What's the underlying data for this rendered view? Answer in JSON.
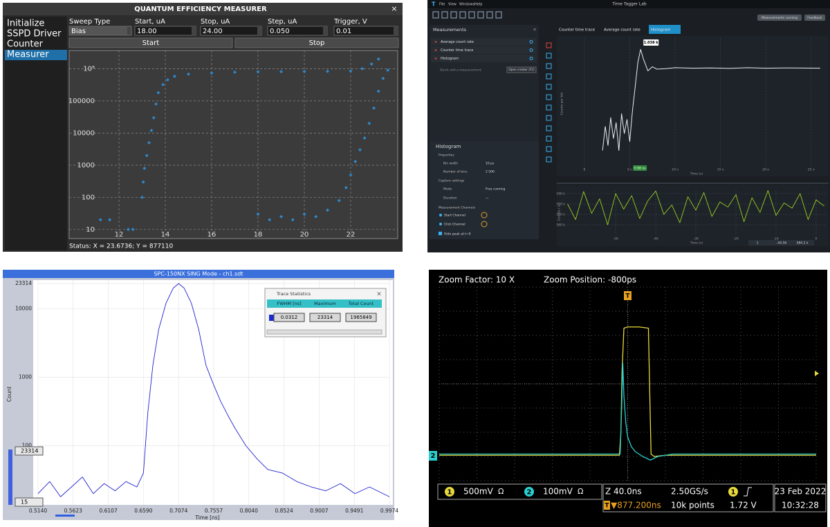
{
  "p1": {
    "title": "QUANTUM EFFICIENCY MEASURER",
    "close": "×",
    "menu": [
      "Initialize",
      "SSPD Driver",
      "Counter",
      "Measurer"
    ],
    "fields": [
      {
        "label": "Sweep Type",
        "value": "Bias"
      },
      {
        "label": "Start, uA",
        "value": "18.00"
      },
      {
        "label": "Stop, uA",
        "value": "24.00"
      },
      {
        "label": "Step, uA",
        "value": "0.050"
      },
      {
        "label": "Trigger, V",
        "value": "0.01"
      }
    ],
    "buttons": [
      "Start",
      "Stop"
    ],
    "status": "Status: X = 23.6736; Y = 877110"
  },
  "p2": {
    "logo": "T",
    "menu": [
      "File",
      "View",
      "Windows",
      "Help"
    ],
    "app_title": "Time Tagger Lab",
    "status_button": "Measurements running",
    "feedback": "Feedback",
    "sidebar_title": "Measurements",
    "sidebar_close": "×",
    "measurements": [
      "Average count rate",
      "Counter time trace",
      "Histogram"
    ],
    "quick_add": "Quick add a measurement",
    "open_creator": "Open creator (F2)",
    "tabs": [
      "Counter time trace",
      "Average count rate",
      "Histogram"
    ],
    "section": "Histogram",
    "properties": "Properties",
    "props": [
      {
        "label": "Bin width",
        "value": "10 ps"
      },
      {
        "label": "Number of bins",
        "value": "2 500"
      }
    ],
    "capture": "Capture settings",
    "capture_props": [
      {
        "label": "Mode",
        "value": "Free running"
      },
      {
        "label": "Duration",
        "value": "—"
      }
    ],
    "channels_title": "Measurement Channels",
    "channels": [
      "Start Channel",
      "Click Channel"
    ],
    "hide_peak": "Hide peak at t=0",
    "legend": [
      "1",
      "-44.56",
      "584.2 k"
    ]
  },
  "p3": {
    "cursor_labels": [
      "23314",
      "15"
    ],
    "stats": {
      "title": "Trace Statistics",
      "close": "×",
      "headers": [
        "FWHM [ns]",
        "Maximum",
        "Total Count"
      ],
      "values": [
        "0.0312",
        "23314",
        "1965849"
      ]
    }
  },
  "p4": {
    "zoom_factor": "Zoom Factor: 10 X",
    "zoom_position": "Zoom Position: -800ps",
    "trigger": "T",
    "ch2_marker": "2",
    "ch1": {
      "num": "1",
      "scale": "500mV",
      "coupling": "Ω"
    },
    "ch2": {
      "num": "2",
      "scale": "100mV",
      "coupling": "Ω"
    },
    "timebase": "Z 40.0ns",
    "rate": "2.50GS/s",
    "trig_icon": "T",
    "trig_pos": "▼877.200ns",
    "points": "10k points",
    "trig_ch": "1",
    "trig_level": "1.72 V",
    "date": "23 Feb 2022",
    "time": "10:32:28"
  },
  "chart_data": [
    {
      "type": "scatter",
      "log_y": true,
      "grid": true,
      "xlim": [
        9.85,
        24.03
      ],
      "ylim": [
        5.2,
        3700000
      ],
      "xticks": [
        12,
        14,
        16,
        18,
        20,
        22
      ],
      "yticks": [
        10,
        100,
        1000,
        10000,
        100000,
        {
          "value": 1000000,
          "label": "10⁶"
        }
      ],
      "series": [
        {
          "color": "#2f86c8",
          "x": [
            11.2,
            11.6,
            12.4,
            12.6,
            13.0,
            13.05,
            13.1,
            13.2,
            13.3,
            13.4,
            13.5,
            13.6,
            13.7,
            13.9,
            14.1,
            14.4,
            15,
            16,
            17,
            18,
            19,
            20,
            21,
            22,
            22.5,
            22.9,
            23.2
          ],
          "values": [
            20,
            20,
            10,
            10,
            100,
            300,
            800,
            2000,
            5000,
            12000,
            30000,
            80000,
            180000,
            320000,
            450000,
            580000,
            680000,
            740000,
            780000,
            800000,
            810000,
            820000,
            830000,
            850000,
            1000000,
            1400000,
            2000000
          ]
        },
        {
          "color": "#2f86c8",
          "x": [
            18,
            18.5,
            19,
            19.5,
            20,
            20.5,
            21,
            21.5,
            21.8,
            22.0,
            22.2,
            22.4,
            22.6,
            22.8,
            23.0,
            23.2,
            23.4,
            23.6
          ],
          "values": [
            30,
            20,
            25,
            20,
            30,
            25,
            40,
            80,
            200,
            500,
            1300,
            3000,
            7000,
            20000,
            60000,
            200000,
            500000,
            900000
          ]
        }
      ]
    },
    {
      "type": "line",
      "log_y": true,
      "grid": true,
      "xlim": [
        -1.9,
        26.7
      ],
      "ylim": [
        1,
        2000
      ],
      "xticks": [
        0,
        {
          "value": 5,
          "label": "5 n"
        },
        {
          "value": 10,
          "label": "10 n"
        },
        {
          "value": 15,
          "label": "15 n"
        },
        {
          "value": 20,
          "label": "20 n"
        },
        {
          "value": 25,
          "label": "25 n"
        }
      ],
      "x_label": "Time (s)",
      "y_label": "Counts per bin",
      "peak_label": "1.038 k",
      "marker_label": "0.98 ns",
      "series": [
        {
          "color": "#e8eef5",
          "x": [
            2.0,
            2.3,
            2.6,
            2.9,
            3.2,
            3.5,
            3.8,
            4.1,
            4.4,
            4.7,
            5.0,
            5.3,
            5.6,
            5.9,
            6.2,
            6.5,
            7,
            7.5,
            8,
            9,
            10,
            12,
            14,
            16,
            18,
            20,
            22,
            24,
            26
          ],
          "values": [
            3,
            12,
            4,
            20,
            6,
            15,
            3,
            25,
            8,
            18,
            5,
            30,
            120,
            500,
            1038,
            600,
            300,
            380,
            330,
            340,
            360,
            350,
            355,
            345,
            360,
            350,
            355,
            352,
            350
          ]
        }
      ]
    },
    {
      "type": "line",
      "grid": true,
      "xlim": [
        -62.1,
        2.6
      ],
      "ylim": [
        550000,
        593300
      ],
      "xticks": [
        -50,
        -40,
        -30,
        -20,
        -10,
        0
      ],
      "yticks": [
        {
          "value": 590000,
          "label": "590 k"
        },
        {
          "value": 580000,
          "label": "580 k"
        },
        {
          "value": 570000,
          "label": "570 k"
        },
        {
          "value": 560000,
          "label": "560 k"
        }
      ],
      "x_label": "Time (s)",
      "y_label": "Counts / s",
      "series": [
        {
          "color": "#a8e020",
          "x": [
            -62,
            -60,
            -58,
            -56,
            -54,
            -52,
            -50,
            -48,
            -46,
            -44,
            -42,
            -40,
            -38,
            -36,
            -34,
            -32,
            -30,
            -28,
            -26,
            -24,
            -22,
            -20,
            -18,
            -16,
            -14,
            -12,
            -10,
            -8,
            -6,
            -4,
            -2,
            0,
            2
          ],
          "values": [
            580000,
            565000,
            592000,
            571000,
            585000,
            560000,
            590000,
            575000,
            588000,
            566000,
            583000,
            592500,
            570000,
            579000,
            562000,
            587000,
            574000,
            591000,
            568000,
            582000,
            577000,
            589000,
            563000,
            586000,
            572000,
            593000,
            569000,
            581000,
            576000,
            590000,
            565000,
            584000,
            578000
          ]
        }
      ]
    },
    {
      "type": "line",
      "log_y": true,
      "grid": true,
      "title": "SPC-150NX  SING Mode - ch1.sdt",
      "xlim": [
        0.514,
        0.9974
      ],
      "ylim": [
        13.7,
        26200
      ],
      "xticks": [
        {
          "value": 0.514,
          "label": "0.5140"
        },
        0.5623,
        0.6107,
        {
          "value": 0.659,
          "label": "0.6590"
        },
        0.7074,
        0.7557,
        {
          "value": 0.804,
          "label": "0.8040"
        },
        0.8524,
        0.9007,
        0.9491,
        0.9974
      ],
      "yticks": [
        23314,
        10000,
        1000,
        100
      ],
      "x_label": "Time [ns]",
      "y_label": "Count",
      "series": [
        {
          "color": "#2020d0",
          "x": [
            0.514,
            0.53,
            0.545,
            0.56,
            0.575,
            0.59,
            0.605,
            0.62,
            0.635,
            0.65,
            0.659,
            0.665,
            0.672,
            0.68,
            0.69,
            0.7,
            0.7074,
            0.715,
            0.725,
            0.735,
            0.745,
            0.755,
            0.765,
            0.775,
            0.785,
            0.8,
            0.815,
            0.83,
            0.85,
            0.87,
            0.89,
            0.91,
            0.93,
            0.95,
            0.97,
            0.9974
          ],
          "values": [
            20,
            30,
            18,
            25,
            35,
            20,
            28,
            22,
            30,
            25,
            40,
            300,
            1500,
            5000,
            12000,
            20000,
            23314,
            20000,
            12000,
            5000,
            1500,
            800,
            450,
            280,
            180,
            100,
            65,
            45,
            40,
            30,
            25,
            22,
            28,
            20,
            25,
            18
          ]
        }
      ]
    },
    {
      "type": "line",
      "xlim": [
        0,
        10
      ],
      "ylim": [
        -4,
        4
      ],
      "series": [
        {
          "color": "#e8d93a",
          "x": [
            0,
            4.78,
            4.82,
            4.85,
            4.9,
            5.0,
            5.3,
            5.55,
            5.58,
            5.62,
            5.7,
            6,
            10
          ],
          "values": [
            -2.95,
            -2.95,
            -2.0,
            0.5,
            2.3,
            2.35,
            2.35,
            2.3,
            0,
            -2.9,
            -3.0,
            -2.95,
            -2.95
          ]
        },
        {
          "color": "#2ad0d0",
          "x": [
            0,
            4.8,
            4.84,
            4.87,
            4.9,
            4.95,
            5.0,
            5.1,
            5.2,
            5.4,
            5.6,
            5.8,
            6.2,
            10
          ],
          "values": [
            -2.9,
            -2.9,
            -1,
            0.86,
            -0.5,
            -1.6,
            -2.2,
            -2.6,
            -2.8,
            -3.0,
            -3.15,
            -3.0,
            -2.9,
            -2.9
          ]
        }
      ]
    }
  ]
}
